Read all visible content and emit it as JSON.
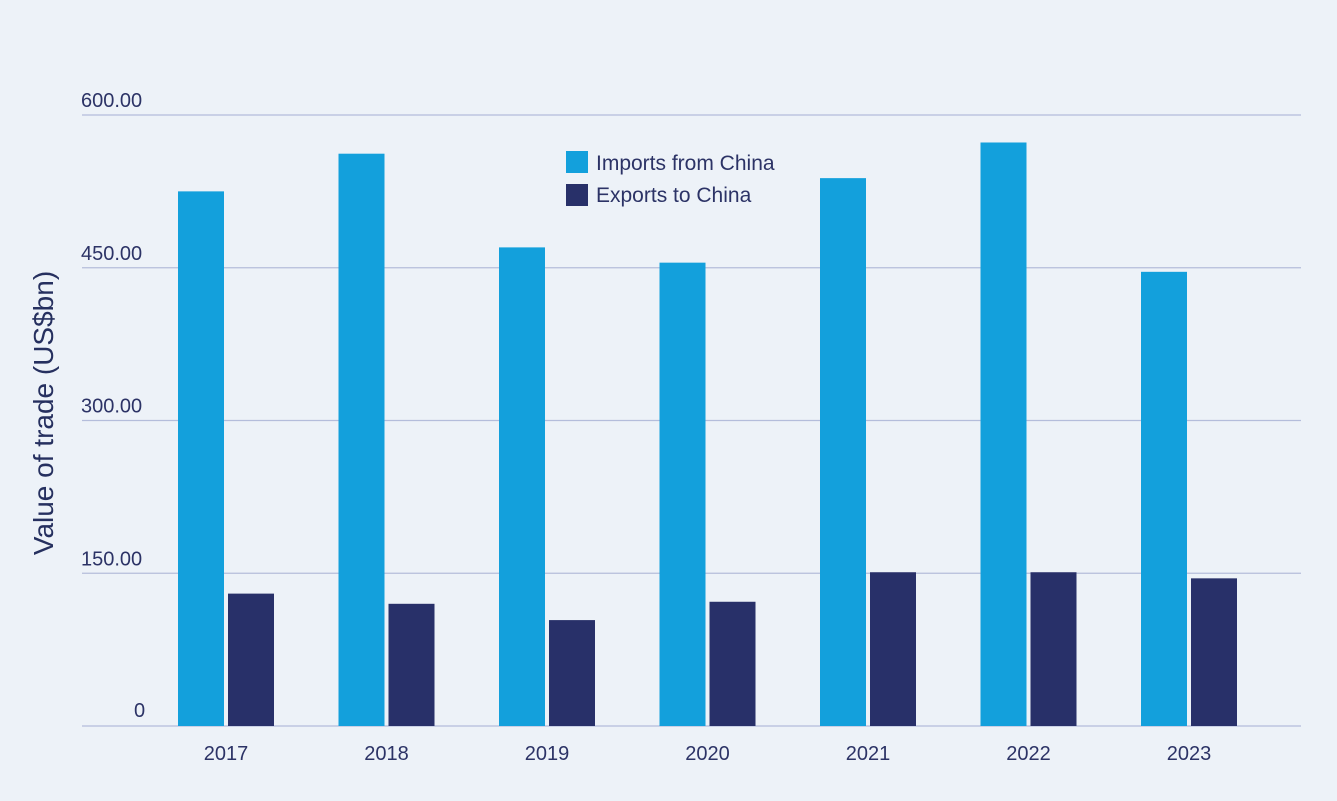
{
  "chart_data": {
    "type": "bar",
    "title": "",
    "xlabel": "",
    "ylabel": "Value of trade (US$bn)",
    "ylim": [
      0,
      600
    ],
    "grid": true,
    "legend_position": "top-center",
    "categories": [
      "2017",
      "2018",
      "2019",
      "2020",
      "2021",
      "2022",
      "2023"
    ],
    "y_ticks": [
      {
        "value": 0,
        "label": "0"
      },
      {
        "value": 150,
        "label": "150.00"
      },
      {
        "value": 300,
        "label": "300.00"
      },
      {
        "value": 450,
        "label": "450.00"
      },
      {
        "value": 600,
        "label": "600.00"
      }
    ],
    "series": [
      {
        "name": "Imports from China",
        "color": "#13a0dc",
        "values": [
          525,
          562,
          470,
          455,
          538,
          573,
          446
        ]
      },
      {
        "name": "Exports to China",
        "color": "#283069",
        "values": [
          130,
          120,
          104,
          122,
          151,
          151,
          145
        ]
      }
    ]
  }
}
